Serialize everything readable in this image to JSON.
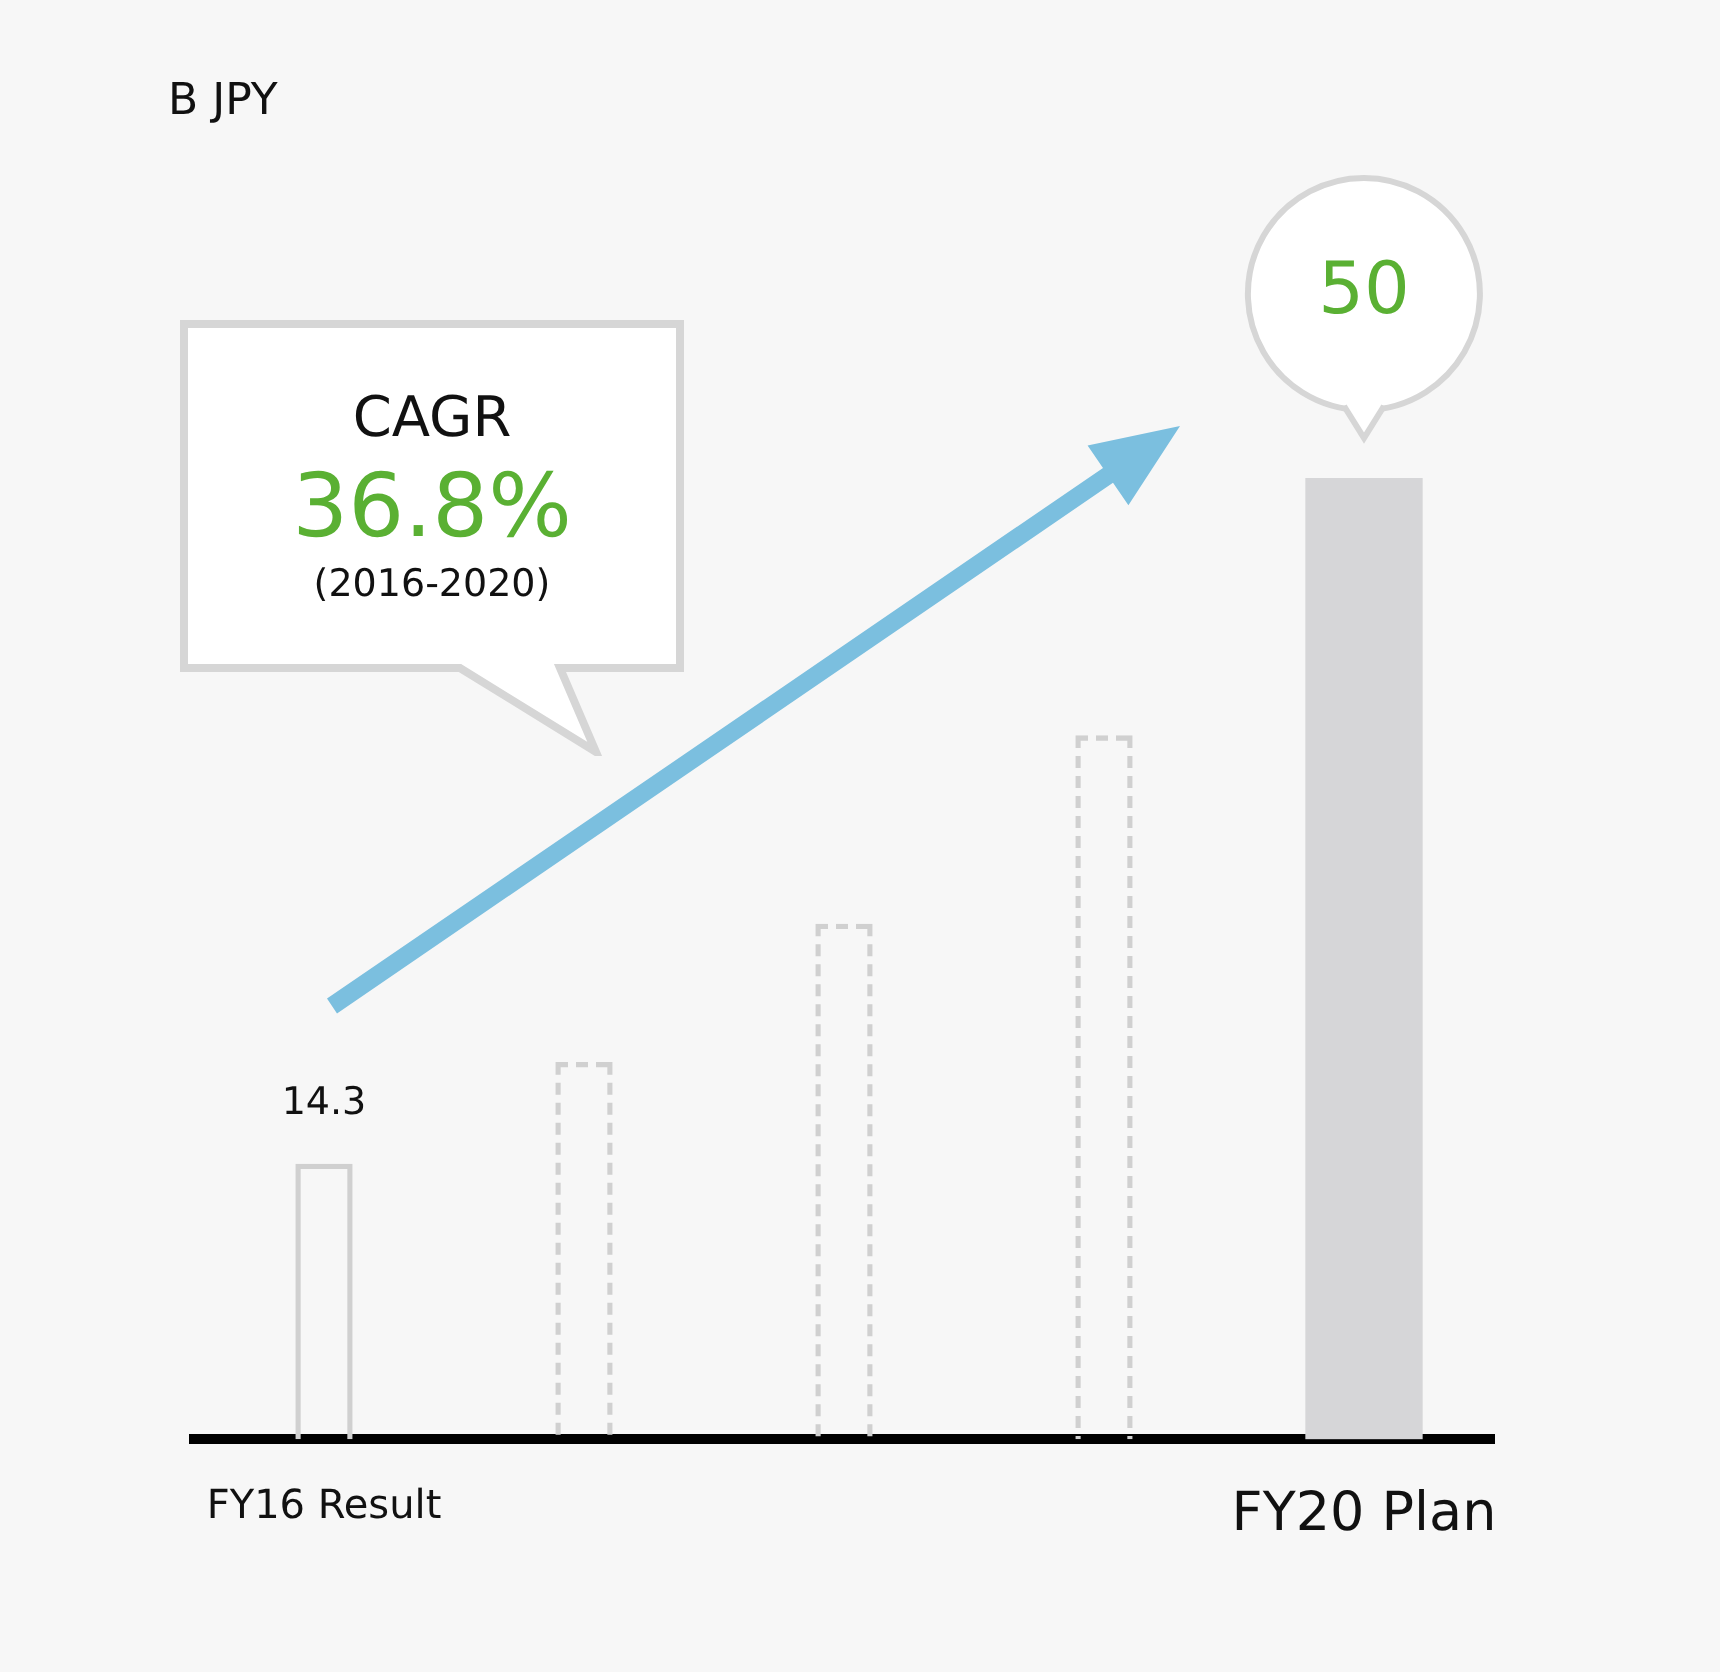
{
  "chart_data": {
    "type": "bar",
    "categories": [
      "FY16 Result",
      null,
      null,
      null,
      "FY20 Plan"
    ],
    "tick_labels": "x",
    "series": [
      {
        "color": "#d0d0d0",
        "line_style": "solid",
        "values": [
          14.3,
          null,
          null,
          null,
          null
        ],
        "value_labels": [
          "14.3",
          null,
          null,
          null,
          null
        ]
      },
      {
        "color": "#d0d0d0",
        "line_style": "dashed",
        "values": [
          null,
          19.6,
          26.8,
          36.6,
          null
        ]
      },
      {
        "color": "#d6d6d8",
        "values": [
          null,
          null,
          null,
          null,
          50
        ],
        "value_labels": [
          null,
          null,
          null,
          null,
          "50"
        ]
      }
    ],
    "annotations": [
      "B JPY",
      "CAGR",
      "36.8%",
      "(2016-2020)"
    ]
  }
}
